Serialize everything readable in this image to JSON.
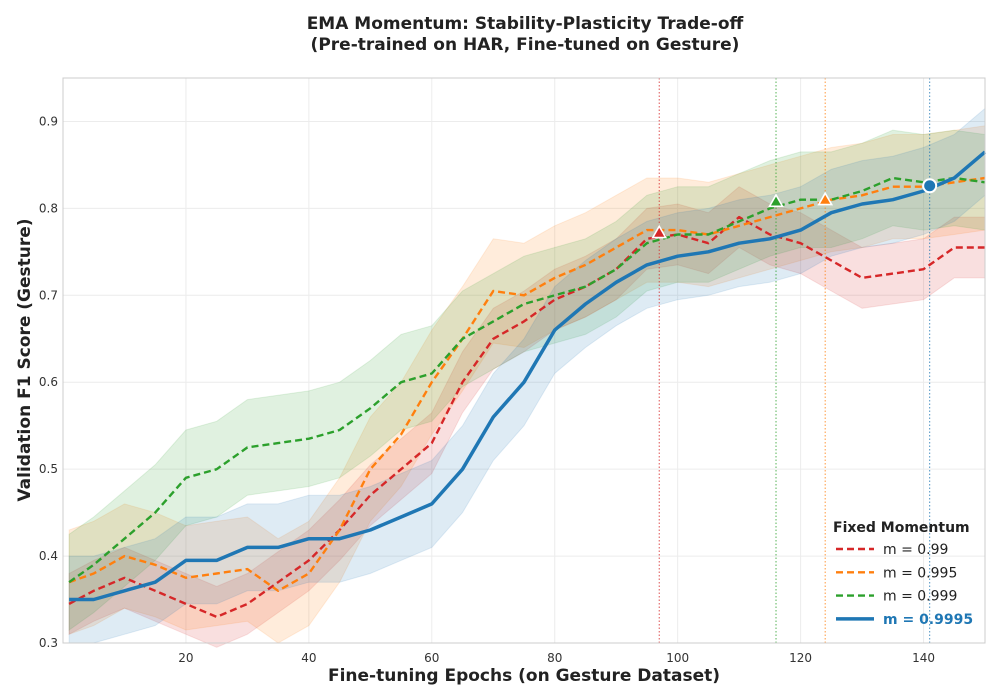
{
  "chart_data": {
    "type": "line",
    "title": "EMA Momentum: Stability-Plasticity Trade-off",
    "subtitle": "(Pre-trained on HAR, Fine-tuned on Gesture)",
    "xlabel": "Fine-tuning Epochs (on Gesture Dataset)",
    "ylabel": "Validation F1 Score (Gesture)",
    "xlim": [
      0,
      150
    ],
    "ylim": [
      0.3,
      0.95
    ],
    "x_ticks": [
      20,
      40,
      60,
      80,
      100,
      120,
      140
    ],
    "y_ticks": [
      0.3,
      0.4,
      0.5,
      0.6,
      0.7,
      0.8,
      0.9
    ],
    "grid": true,
    "legend": {
      "title": "Fixed Momentum",
      "placement": "lower-right"
    },
    "series": [
      {
        "name": "m = 0.99",
        "color": "#d62728",
        "style": "dashed",
        "points": [
          [
            1,
            0.345
          ],
          [
            5,
            0.36
          ],
          [
            10,
            0.375
          ],
          [
            15,
            0.36
          ],
          [
            20,
            0.345
          ],
          [
            25,
            0.33
          ],
          [
            30,
            0.345
          ],
          [
            35,
            0.37
          ],
          [
            40,
            0.395
          ],
          [
            45,
            0.43
          ],
          [
            50,
            0.47
          ],
          [
            55,
            0.5
          ],
          [
            60,
            0.53
          ],
          [
            65,
            0.6
          ],
          [
            70,
            0.65
          ],
          [
            75,
            0.67
          ],
          [
            80,
            0.695
          ],
          [
            85,
            0.71
          ],
          [
            90,
            0.73
          ],
          [
            95,
            0.765
          ],
          [
            100,
            0.77
          ],
          [
            105,
            0.76
          ],
          [
            110,
            0.79
          ],
          [
            115,
            0.77
          ],
          [
            120,
            0.76
          ],
          [
            125,
            0.74
          ],
          [
            130,
            0.72
          ],
          [
            135,
            0.725
          ],
          [
            140,
            0.73
          ],
          [
            145,
            0.755
          ],
          [
            150,
            0.755
          ]
        ],
        "band": 0.035,
        "marker": {
          "x": 97,
          "y": 0.772,
          "shape": "triangle"
        }
      },
      {
        "name": "m = 0.995",
        "color": "#ff7f0e",
        "style": "dashed",
        "points": [
          [
            1,
            0.37
          ],
          [
            5,
            0.38
          ],
          [
            10,
            0.4
          ],
          [
            15,
            0.39
          ],
          [
            20,
            0.375
          ],
          [
            25,
            0.38
          ],
          [
            30,
            0.385
          ],
          [
            35,
            0.36
          ],
          [
            40,
            0.38
          ],
          [
            45,
            0.43
          ],
          [
            50,
            0.5
          ],
          [
            55,
            0.54
          ],
          [
            60,
            0.6
          ],
          [
            65,
            0.65
          ],
          [
            70,
            0.705
          ],
          [
            75,
            0.7
          ],
          [
            80,
            0.72
          ],
          [
            85,
            0.735
          ],
          [
            90,
            0.755
          ],
          [
            95,
            0.775
          ],
          [
            100,
            0.775
          ],
          [
            105,
            0.77
          ],
          [
            110,
            0.78
          ],
          [
            115,
            0.79
          ],
          [
            120,
            0.8
          ],
          [
            125,
            0.81
          ],
          [
            130,
            0.815
          ],
          [
            135,
            0.825
          ],
          [
            140,
            0.825
          ],
          [
            145,
            0.83
          ],
          [
            150,
            0.835
          ]
        ],
        "band": 0.06,
        "marker": {
          "x": 124,
          "y": 0.81,
          "shape": "triangle"
        }
      },
      {
        "name": "m = 0.999",
        "color": "#2ca02c",
        "style": "dashed",
        "points": [
          [
            1,
            0.37
          ],
          [
            5,
            0.39
          ],
          [
            10,
            0.42
          ],
          [
            15,
            0.45
          ],
          [
            20,
            0.49
          ],
          [
            25,
            0.5
          ],
          [
            30,
            0.525
          ],
          [
            35,
            0.53
          ],
          [
            40,
            0.535
          ],
          [
            45,
            0.545
          ],
          [
            50,
            0.57
          ],
          [
            55,
            0.6
          ],
          [
            60,
            0.61
          ],
          [
            65,
            0.65
          ],
          [
            70,
            0.67
          ],
          [
            75,
            0.69
          ],
          [
            80,
            0.7
          ],
          [
            85,
            0.71
          ],
          [
            90,
            0.73
          ],
          [
            95,
            0.76
          ],
          [
            100,
            0.77
          ],
          [
            105,
            0.77
          ],
          [
            110,
            0.785
          ],
          [
            115,
            0.8
          ],
          [
            120,
            0.81
          ],
          [
            125,
            0.81
          ],
          [
            130,
            0.82
          ],
          [
            135,
            0.835
          ],
          [
            140,
            0.83
          ],
          [
            145,
            0.835
          ],
          [
            150,
            0.83
          ]
        ],
        "band": 0.055,
        "marker": {
          "x": 116,
          "y": 0.808,
          "shape": "triangle"
        }
      },
      {
        "name": "m = 0.9995",
        "color": "#1f77b4",
        "style": "solid",
        "points": [
          [
            1,
            0.35
          ],
          [
            5,
            0.35
          ],
          [
            10,
            0.36
          ],
          [
            15,
            0.37
          ],
          [
            20,
            0.395
          ],
          [
            25,
            0.395
          ],
          [
            30,
            0.41
          ],
          [
            35,
            0.41
          ],
          [
            40,
            0.42
          ],
          [
            45,
            0.42
          ],
          [
            50,
            0.43
          ],
          [
            55,
            0.445
          ],
          [
            60,
            0.46
          ],
          [
            65,
            0.5
          ],
          [
            70,
            0.56
          ],
          [
            75,
            0.6
          ],
          [
            80,
            0.66
          ],
          [
            85,
            0.69
          ],
          [
            90,
            0.715
          ],
          [
            95,
            0.735
          ],
          [
            100,
            0.745
          ],
          [
            105,
            0.75
          ],
          [
            110,
            0.76
          ],
          [
            115,
            0.765
          ],
          [
            120,
            0.775
          ],
          [
            125,
            0.795
          ],
          [
            130,
            0.805
          ],
          [
            135,
            0.81
          ],
          [
            140,
            0.82
          ],
          [
            145,
            0.835
          ],
          [
            150,
            0.865
          ]
        ],
        "band": 0.05,
        "marker": {
          "x": 141,
          "y": 0.826,
          "shape": "circle"
        }
      }
    ]
  }
}
